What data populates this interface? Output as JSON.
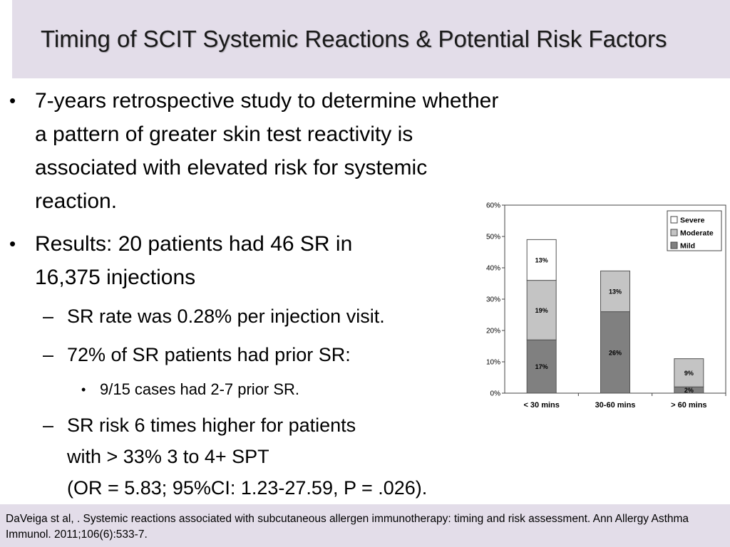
{
  "slide": {
    "title": "Timing of SCIT Systemic Reactions & Potential Risk Factors",
    "bullets": {
      "b1_lines": [
        "7-years retrospective study to determine whether",
        "a pattern of greater skin test reactivity is",
        "associated with elevated risk for systemic",
        "reaction."
      ],
      "b2_lines": [
        "Results: 20 patients had 46 SR in",
        "16,375 injections"
      ],
      "b2_sub1": "SR rate was 0.28% per injection visit.",
      "b2_sub2": "72% of SR patients had prior SR:",
      "b2_sub2_sub1": "9/15 cases had 2-7 prior SR.",
      "b2_sub3_lines": [
        "SR risk 6 times higher for patients",
        "with > 33% 3 to 4+ SPT",
        "(OR = 5.83; 95%CI: 1.23-27.59, P = .026)."
      ],
      "dot": "•",
      "dash": "–"
    },
    "citation": "DaVeiga  st al, . Systemic reactions associated with subcutaneous allergen immunotherapy: timing and risk assessment. Ann Allergy Asthma Immunol. 2011;106(6):533-7."
  },
  "colors": {
    "title_bar": "#e3dde9",
    "severe": "#ffffff",
    "moderate": "#c4c4c4",
    "mild": "#808080"
  },
  "chart_data": {
    "type": "bar",
    "stacked": true,
    "categories": [
      "< 30 mins",
      "30-60 mins",
      "> 60 mins"
    ],
    "series": [
      {
        "name": "Mild",
        "values": [
          17,
          26,
          2
        ],
        "labels": [
          "17%",
          "26%",
          "2%"
        ]
      },
      {
        "name": "Moderate",
        "values": [
          19,
          13,
          9
        ],
        "labels": [
          "19%",
          "13%",
          "9%"
        ]
      },
      {
        "name": "Severe",
        "values": [
          13,
          0,
          0
        ],
        "labels": [
          "13%",
          "",
          ""
        ]
      }
    ],
    "legend_order": [
      "Severe",
      "Moderate",
      "Mild"
    ],
    "legend_position": "top-right",
    "ylim": [
      0,
      60
    ],
    "yticks": [
      "0%",
      "10%",
      "20%",
      "30%",
      "40%",
      "50%",
      "60%"
    ],
    "ytick_values": [
      0,
      10,
      20,
      30,
      40,
      50,
      60
    ],
    "title": "",
    "xlabel": "",
    "ylabel": ""
  }
}
